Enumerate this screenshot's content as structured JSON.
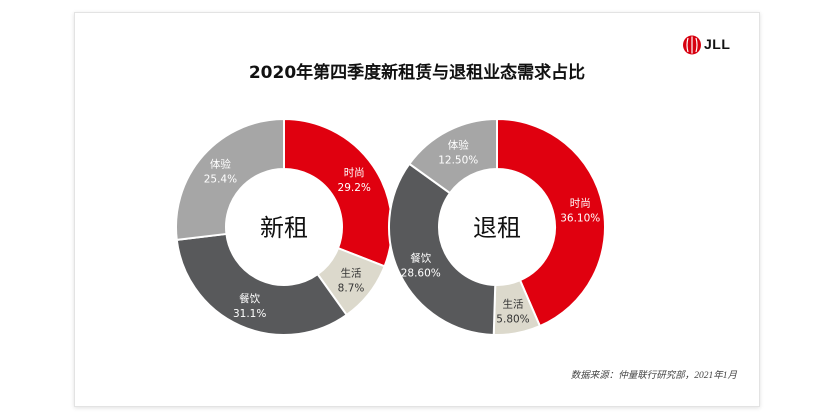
{
  "logo": {
    "text": "JLL",
    "color": "#d7000f"
  },
  "source": "数据来源：仲量联行研究部，2021年1月",
  "chart_data": {
    "title": "2020年第四季度新租赁与退租业态需求占比",
    "charts": [
      {
        "type": "pie",
        "variant": "donut",
        "center_label": "新租",
        "slices": [
          {
            "label": "时尚",
            "value": 29.2,
            "display": "29.2%",
            "color": "#e0000f"
          },
          {
            "label": "生活",
            "value": 8.7,
            "display": "8.7%",
            "color": "#dcd9cc"
          },
          {
            "label": "餐饮",
            "value": 31.1,
            "display": "31.1%",
            "color": "#58595b"
          },
          {
            "label": "体验",
            "value": 25.4,
            "display": "25.4%",
            "color": "#a6a6a6"
          }
        ]
      },
      {
        "type": "pie",
        "variant": "donut",
        "center_label": "退租",
        "slices": [
          {
            "label": "时尚",
            "value": 36.1,
            "display": "36.10%",
            "color": "#e0000f"
          },
          {
            "label": "生活",
            "value": 5.8,
            "display": "5.80%",
            "color": "#dcd9cc"
          },
          {
            "label": "餐饮",
            "value": 28.6,
            "display": "28.60%",
            "color": "#58595b"
          },
          {
            "label": "体验",
            "value": 12.5,
            "display": "12.50%",
            "color": "#a6a6a6"
          }
        ]
      }
    ]
  }
}
